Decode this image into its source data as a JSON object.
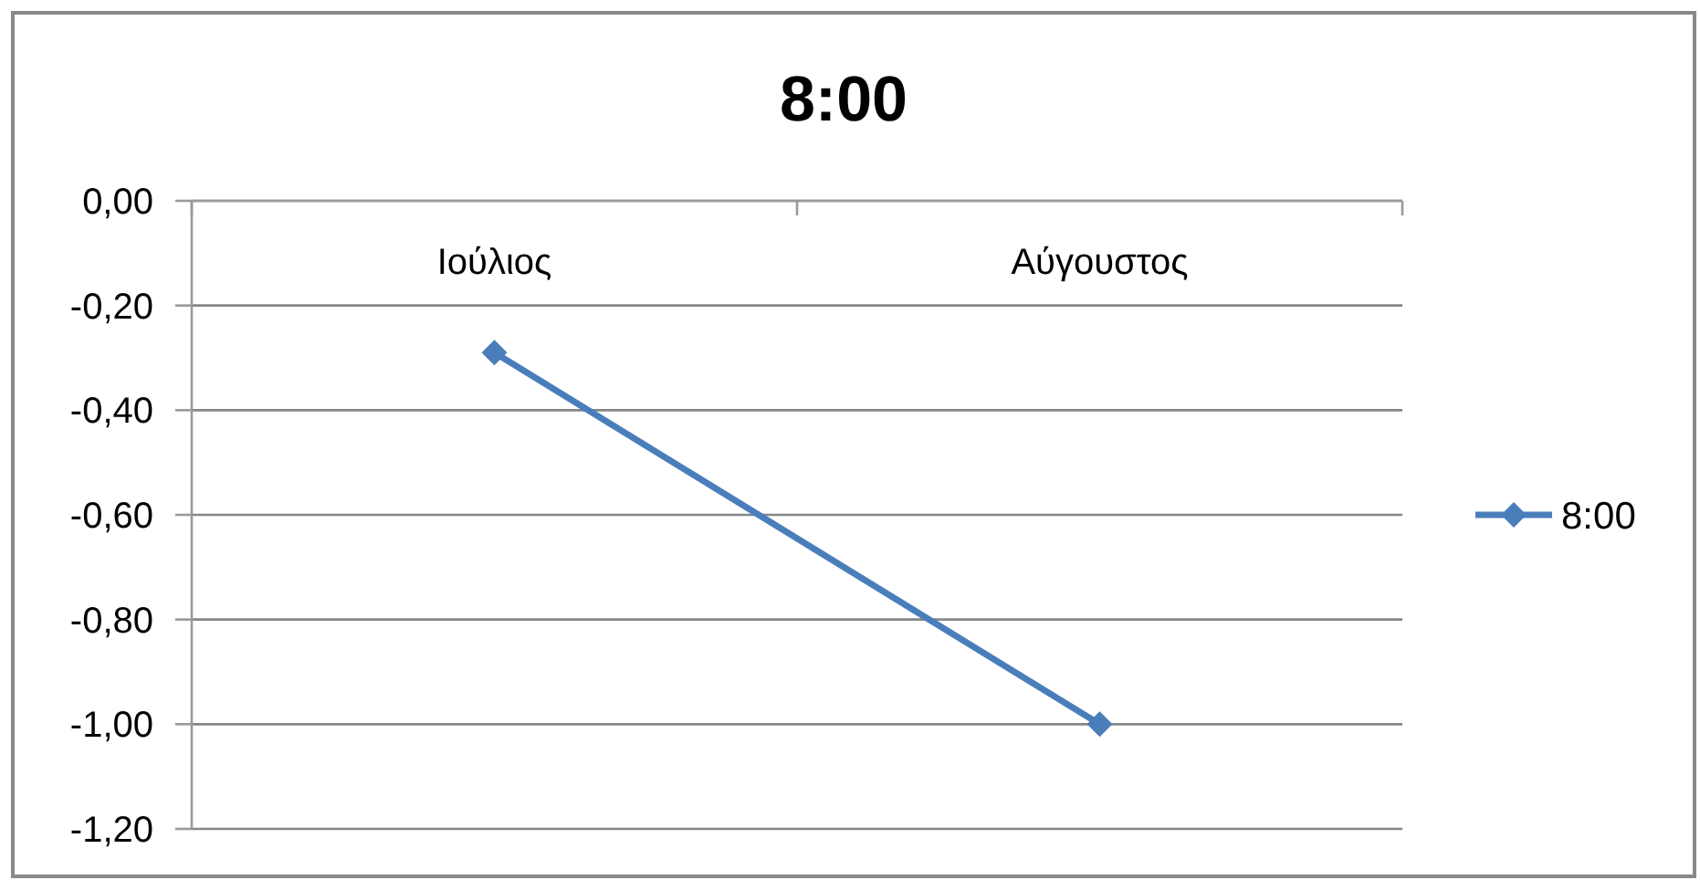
{
  "chart_data": {
    "type": "line",
    "title": "8:00",
    "categories": [
      "Ιούλιος",
      "Αύγουστος"
    ],
    "series": [
      {
        "name": "8:00",
        "color": "#4a7ebb",
        "values": [
          -0.29,
          -1.0
        ]
      }
    ],
    "ylim": [
      -1.2,
      0
    ],
    "yticks": [
      {
        "value": 0,
        "label": "0,00"
      },
      {
        "value": -0.2,
        "label": "-0,20"
      },
      {
        "value": -0.4,
        "label": "-0,40"
      },
      {
        "value": -0.6,
        "label": "-0,60"
      },
      {
        "value": -0.8,
        "label": "-0,80"
      },
      {
        "value": -1,
        "label": "-1,00"
      },
      {
        "value": -1.2,
        "label": "-1,20"
      }
    ],
    "grid": "y",
    "legend": "right",
    "marker": "diamond",
    "line_style": "solid"
  }
}
